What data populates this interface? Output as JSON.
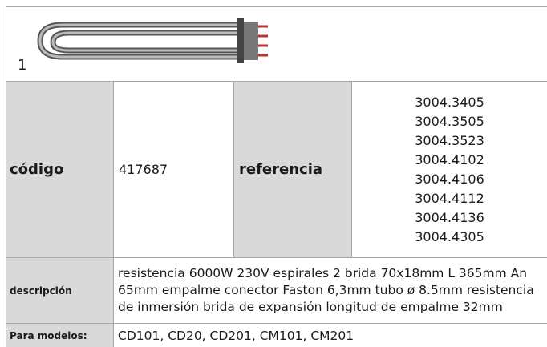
{
  "image_label": "1",
  "table": {
    "codigo_label": "código",
    "codigo": "417687",
    "referencia_label": "referencia",
    "referencias": [
      "3004.3405",
      "3004.3505",
      "3004.3523",
      "3004.4102",
      "3004.4106",
      "3004.4112",
      "3004.4136",
      "3004.4305"
    ],
    "descripcion_label": "descripción",
    "descripcion": "resistencia  6000W 230V espirales 2 brida 70x18mm L 365mm An 65mm empalme conector Faston 6,3mm tubo ø 8.5mm resistencia de inmersión brida de expansión longitud de empalme 32mm",
    "modelos_label": "Para modelos:",
    "modelos": "CD101, CD20, CD201, CM101, CM201"
  }
}
